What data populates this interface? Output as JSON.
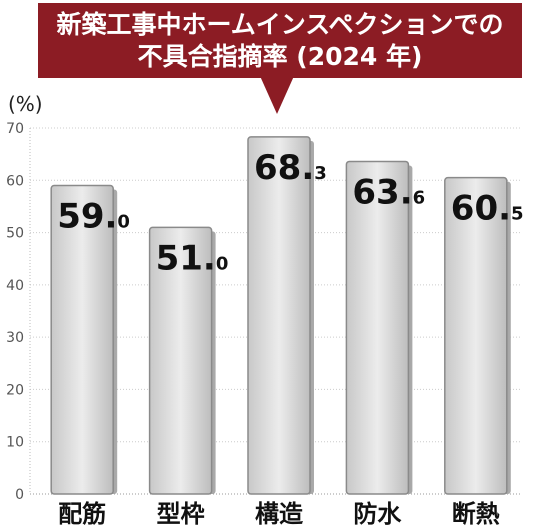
{
  "title": {
    "line1": "新築工事中ホームインスペクションでの",
    "line2": "不具合指摘率 (2024 年)"
  },
  "colors": {
    "title_bg": "#8c1c24",
    "bar_light": "#e4e4e4",
    "bar_dark": "#9a9a9a",
    "grid": "#cccccc"
  },
  "chart_data": {
    "type": "bar",
    "title": "新築工事中ホームインスペクションでの不具合指摘率 (2024 年)",
    "ylabel": "(%)",
    "xlabel": "",
    "ylim": [
      0,
      70
    ],
    "yticks": [
      0,
      10,
      20,
      30,
      40,
      50,
      60,
      70
    ],
    "grid": true,
    "categories": [
      "配筋",
      "型枠",
      "構造",
      "防水",
      "断熱"
    ],
    "values": [
      59.0,
      51.0,
      68.3,
      63.6,
      60.5
    ],
    "labels": [
      {
        "main": "59.",
        "dec": "0"
      },
      {
        "main": "51.",
        "dec": "0"
      },
      {
        "main": "68.",
        "dec": "3"
      },
      {
        "main": "63.",
        "dec": "6"
      },
      {
        "main": "60.",
        "dec": "5"
      }
    ]
  }
}
